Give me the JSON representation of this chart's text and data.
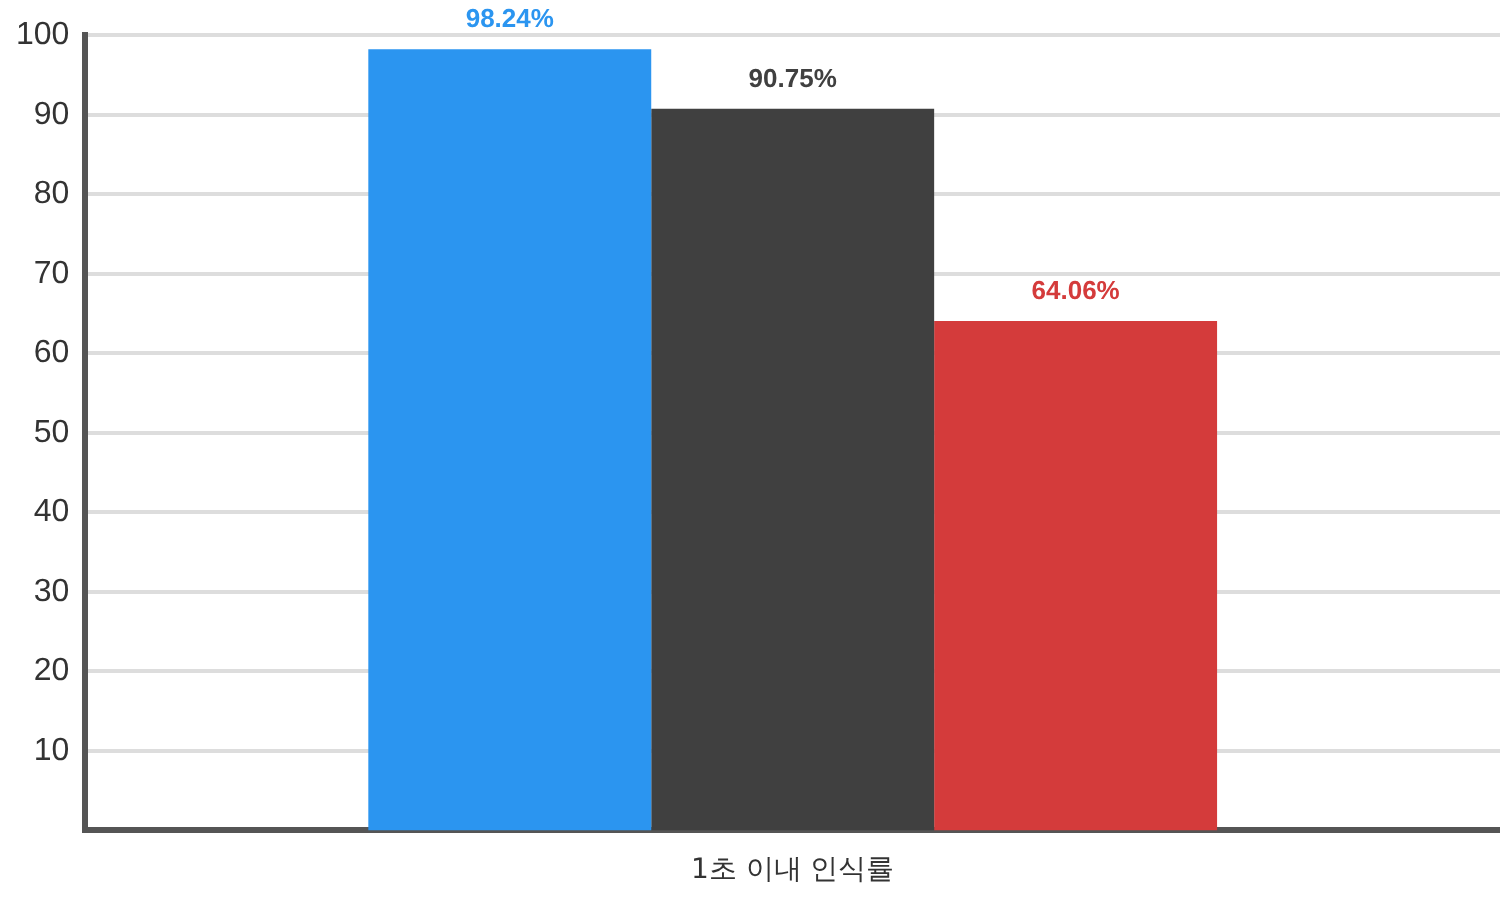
{
  "chart_data": {
    "type": "bar",
    "categories": [
      "1초 이내 인식률"
    ],
    "series": [
      {
        "color": "#2b95f0",
        "values": [
          98.24
        ],
        "value_labels": [
          "98.24%"
        ]
      },
      {
        "color": "#404040",
        "values": [
          90.75
        ],
        "value_labels": [
          "90.75%"
        ]
      },
      {
        "color": "#d43b3b",
        "values": [
          64.06
        ],
        "value_labels": [
          "64.06%"
        ]
      }
    ],
    "ylim": [
      0,
      100
    ],
    "yticks": [
      10,
      20,
      30,
      40,
      50,
      60,
      70,
      80,
      90,
      100
    ],
    "grid": "y",
    "legend": false
  }
}
